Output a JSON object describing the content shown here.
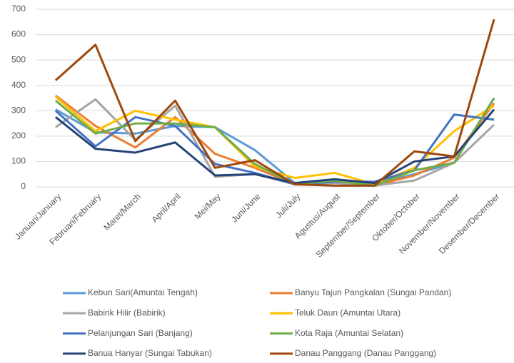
{
  "chart_data": {
    "type": "line",
    "categories": [
      "Januari/January",
      "Februari/February",
      "Maret/March",
      "April/April",
      "Mei/May",
      "Juni/June",
      "Juli/July",
      "Agustus/August",
      "September/September",
      "Oktober/October",
      "November/November",
      "Desember/December"
    ],
    "series": [
      {
        "name": "Kebun Sari(Amuntai Tengah)",
        "color": "#5b9bd5",
        "values": [
          305,
          215,
          210,
          240,
          235,
          145,
          15,
          30,
          10,
          50,
          95,
          350
        ]
      },
      {
        "name": "Banyu Tajun Pangkalan (Sungai Pandan)",
        "color": "#ed7d31",
        "values": [
          360,
          240,
          155,
          275,
          130,
          75,
          10,
          20,
          5,
          45,
          115,
          330
        ]
      },
      {
        "name": "Babirik Hilir (Babirik)",
        "color": "#a5a5a5",
        "values": [
          235,
          345,
          185,
          320,
          40,
          50,
          10,
          15,
          5,
          25,
          95,
          245
        ]
      },
      {
        "name": "Teluk Daun (Amuntai Utara)",
        "color": "#ffc000",
        "values": [
          355,
          220,
          300,
          265,
          235,
          80,
          35,
          55,
          10,
          75,
          220,
          320
        ]
      },
      {
        "name": "Pelanjungan Sari (Banjang)",
        "color": "#4472c4",
        "values": [
          300,
          160,
          275,
          240,
          90,
          55,
          10,
          20,
          20,
          65,
          285,
          265
        ]
      },
      {
        "name": "Kota Raja (Amuntai Selatan)",
        "color": "#70ad47",
        "values": [
          340,
          210,
          250,
          250,
          235,
          90,
          10,
          25,
          5,
          65,
          95,
          350
        ]
      },
      {
        "name": "Banua Hanyar (Sungai Tabukan)",
        "color": "#264478",
        "values": [
          275,
          150,
          135,
          175,
          45,
          50,
          15,
          30,
          15,
          100,
          120,
          305
        ]
      },
      {
        "name": "Danau Panggang (Danau Panggang)",
        "color": "#9e480e",
        "values": [
          420,
          560,
          180,
          340,
          75,
          105,
          10,
          5,
          5,
          140,
          120,
          660
        ]
      }
    ],
    "ylim": [
      0,
      700
    ],
    "yticks": [
      0,
      100,
      200,
      300,
      400,
      500,
      600,
      700
    ],
    "grid": true,
    "legend": "bottom"
  }
}
